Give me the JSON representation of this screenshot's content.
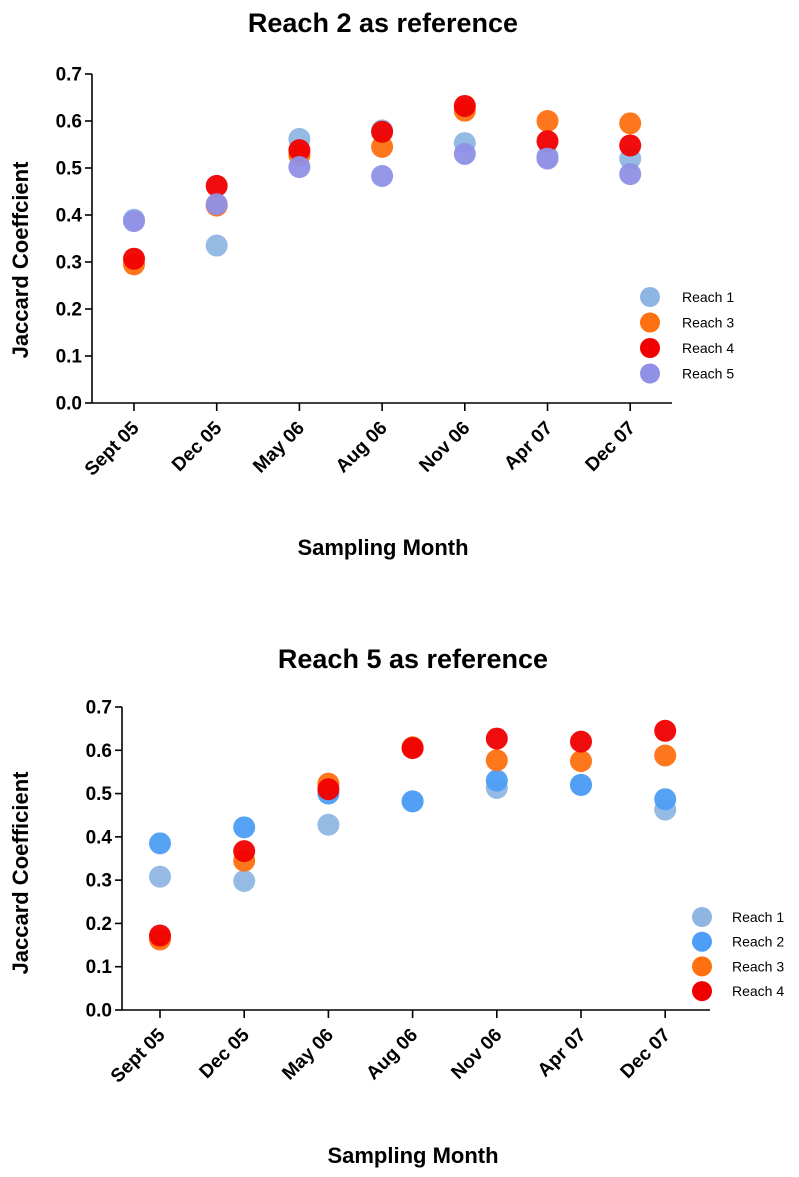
{
  "chart_data": [
    {
      "type": "scatter",
      "title": "Reach 2 as reference",
      "xlabel": "Sampling Month",
      "ylabel": "Jaccard Coeffcient",
      "categories": [
        "Sept 05",
        "Dec 05",
        "May 06",
        "Aug 06",
        "Nov 06",
        "Apr 07",
        "Dec 07"
      ],
      "ylim": [
        0,
        0.7
      ],
      "yticks": [
        "0.0",
        "0.1",
        "0.2",
        "0.3",
        "0.4",
        "0.5",
        "0.6",
        "0.7"
      ],
      "grid": false,
      "legend_position": "right",
      "series": [
        {
          "name": "Reach 1",
          "color": "#8fb6e3",
          "values": [
            0.39,
            0.335,
            0.562,
            0.58,
            0.553,
            0.525,
            0.52
          ]
        },
        {
          "name": "Reach 3",
          "color": "#ff7010",
          "values": [
            0.295,
            0.42,
            0.527,
            0.545,
            0.622,
            0.6,
            0.595
          ]
        },
        {
          "name": "Reach 4",
          "color": "#f00000",
          "values": [
            0.307,
            0.462,
            0.538,
            0.577,
            0.632,
            0.557,
            0.548
          ]
        },
        {
          "name": "Reach 5",
          "color": "#9090e6",
          "values": [
            0.387,
            0.423,
            0.502,
            0.483,
            0.53,
            0.52,
            0.487
          ]
        }
      ]
    },
    {
      "type": "scatter",
      "title": "Reach 5 as reference",
      "xlabel": "Sampling Month",
      "ylabel": "Jaccard Coefficient",
      "categories": [
        "Sept 05",
        "Dec 05",
        "May 06",
        "Aug 06",
        "Nov 06",
        "Apr 07",
        "Dec 07"
      ],
      "ylim": [
        0,
        0.7
      ],
      "yticks": [
        "0.0",
        "0.1",
        "0.2",
        "0.3",
        "0.4",
        "0.5",
        "0.6",
        "0.7"
      ],
      "grid": false,
      "legend_position": "right",
      "series": [
        {
          "name": "Reach 1",
          "color": "#8fb6e3",
          "values": [
            0.308,
            0.298,
            0.428,
            0.482,
            0.513,
            0.52,
            0.463
          ]
        },
        {
          "name": "Reach 2",
          "color": "#4d9ef6",
          "values": [
            0.385,
            0.422,
            0.5,
            0.482,
            0.53,
            0.52,
            0.487
          ]
        },
        {
          "name": "Reach 3",
          "color": "#ff7010",
          "values": [
            0.163,
            0.345,
            0.523,
            0.607,
            0.577,
            0.575,
            0.588
          ]
        },
        {
          "name": "Reach 4",
          "color": "#f00000",
          "values": [
            0.172,
            0.367,
            0.51,
            0.605,
            0.627,
            0.62,
            0.645
          ]
        }
      ]
    }
  ]
}
